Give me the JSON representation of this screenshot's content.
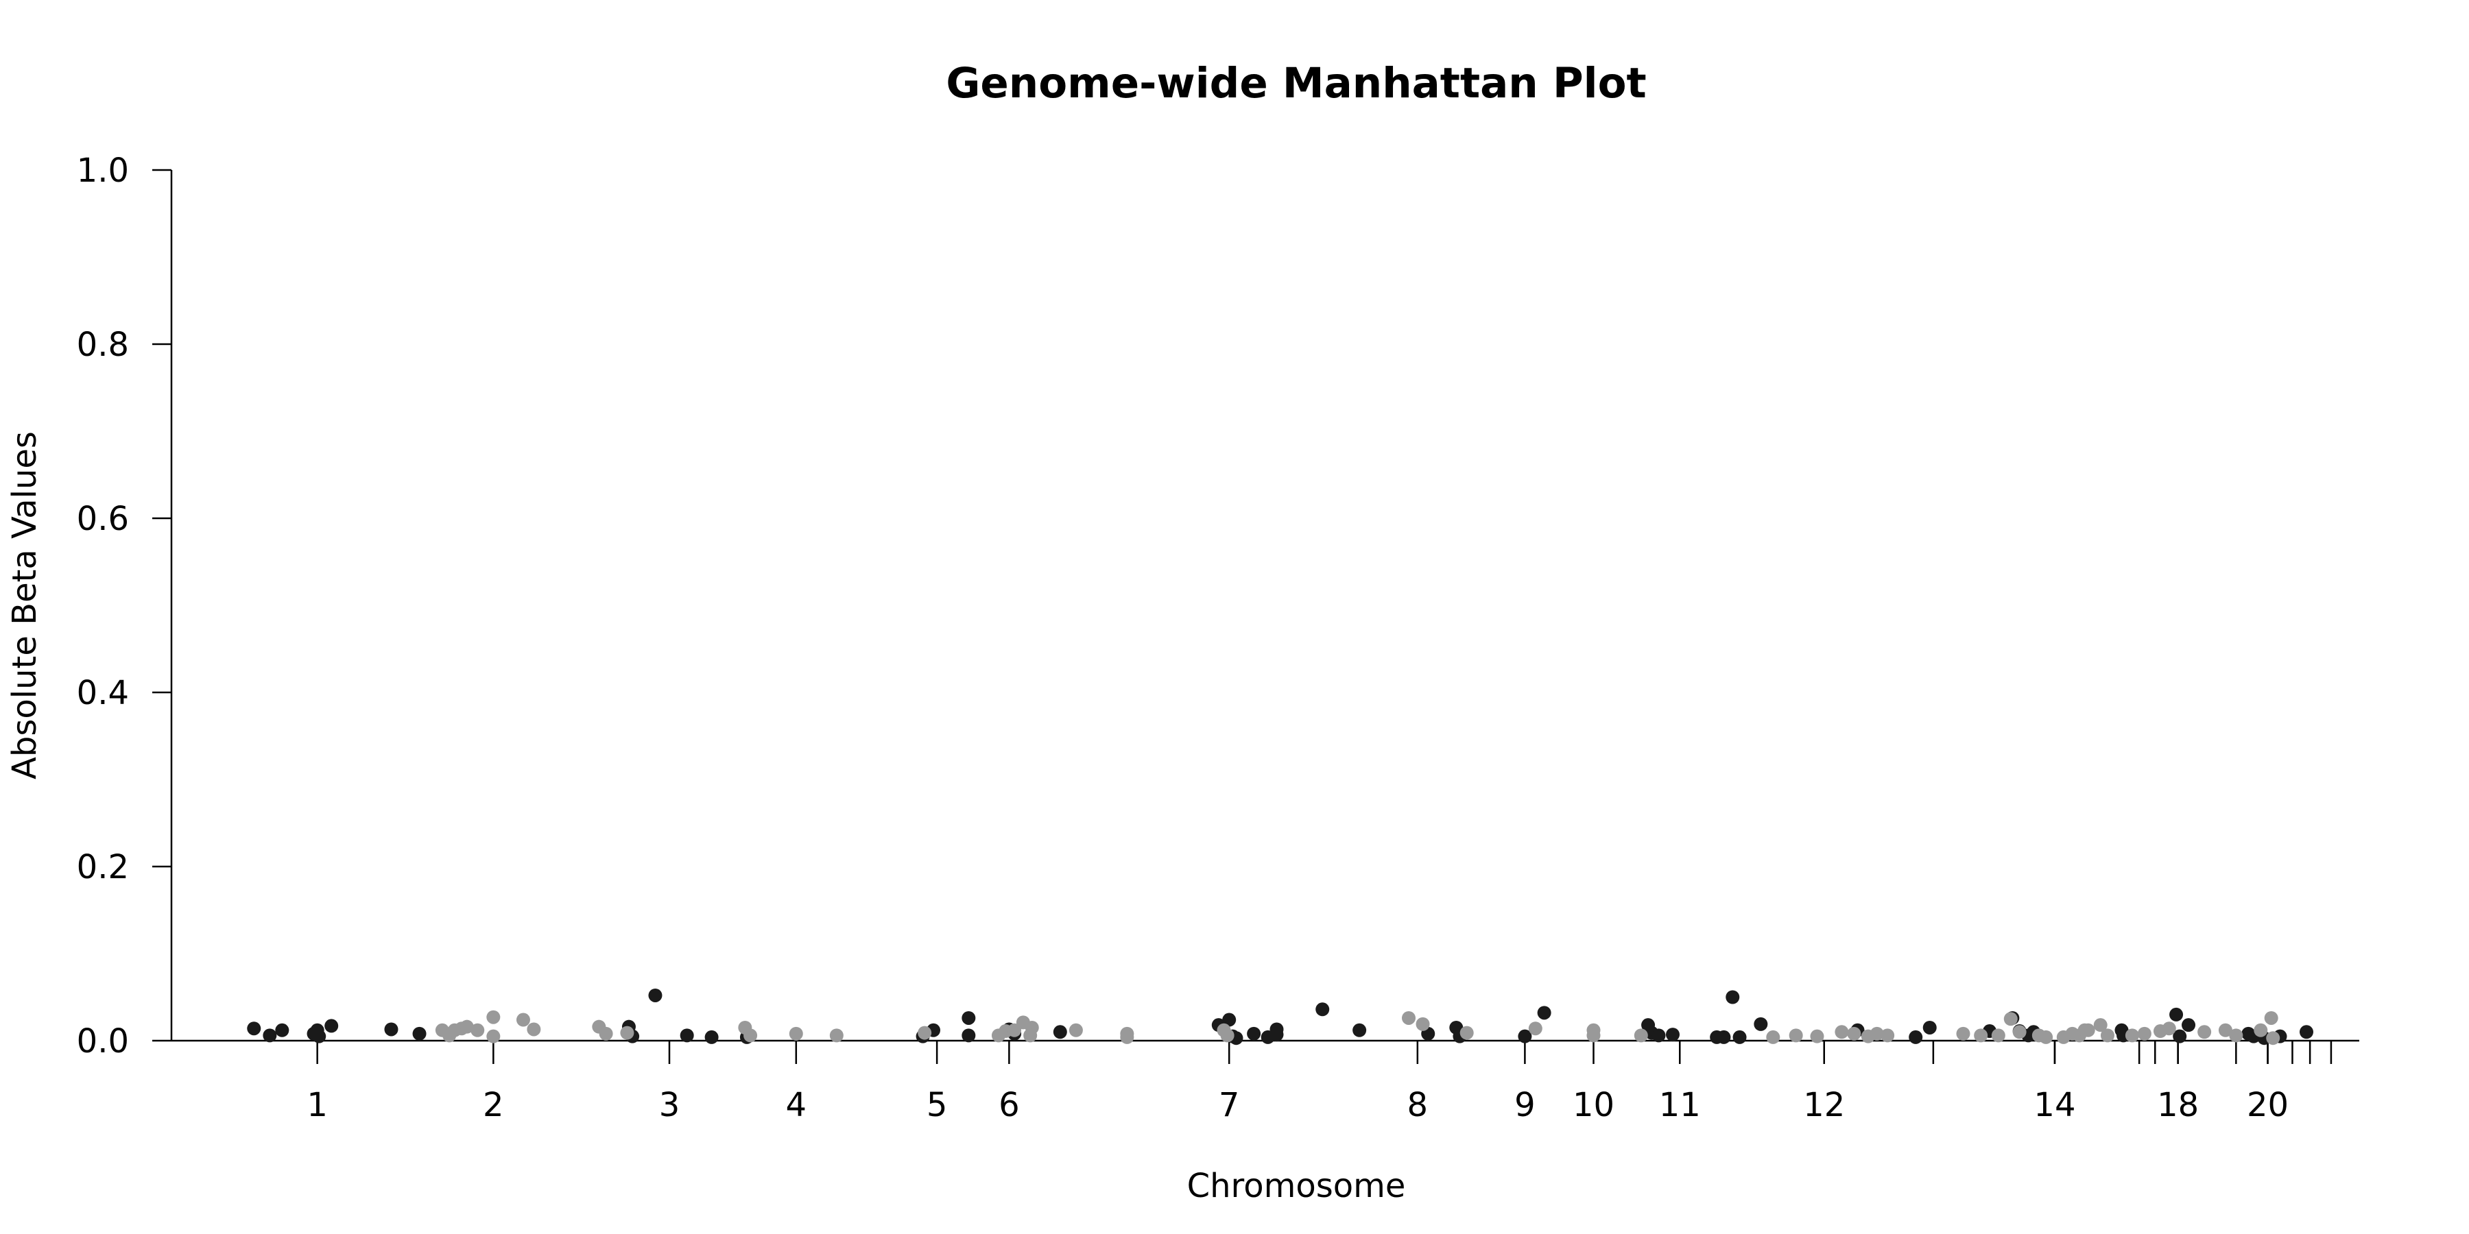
{
  "chart_data": {
    "type": "scatter",
    "title": "Genome-wide Manhattan Plot",
    "xlabel": "Chromosome",
    "ylabel": "Absolute Beta Values",
    "ylim": [
      0,
      1.0
    ],
    "yticks": [
      "0.0",
      "0.2",
      "0.4",
      "0.6",
      "0.8",
      "1.0"
    ],
    "grid": false,
    "legend": "none",
    "colors": {
      "dark": "#1a1a1a",
      "light": "#999999"
    },
    "chromosome_ticks": [
      {
        "label": "1",
        "pos": 1.0
      },
      {
        "label": "2",
        "pos": 2.0
      },
      {
        "label": "3",
        "pos": 3.0
      },
      {
        "label": "4",
        "pos": 3.72
      },
      {
        "label": "5",
        "pos": 4.52
      },
      {
        "label": "6",
        "pos": 4.93
      },
      {
        "label": "7",
        "pos": 6.18
      },
      {
        "label": "8",
        "pos": 7.25
      },
      {
        "label": "9",
        "pos": 7.86
      },
      {
        "label": "10",
        "pos": 8.25
      },
      {
        "label": "11",
        "pos": 8.74
      },
      {
        "label": "",
        "pos": 9.56
      },
      {
        "label": "12",
        "pos": 9.56
      },
      {
        "label": "",
        "pos": 10.87
      },
      {
        "label": "14",
        "pos": 10.87
      },
      {
        "label": "",
        "pos": 10.18
      },
      {
        "label": "",
        "pos": 11.35
      },
      {
        "label": "",
        "pos": 11.44
      },
      {
        "label": "",
        "pos": 11.57
      },
      {
        "label": "18",
        "pos": 11.57
      },
      {
        "label": "",
        "pos": 11.9
      },
      {
        "label": "",
        "pos": 12.08
      },
      {
        "label": "20",
        "pos": 12.08
      },
      {
        "label": "",
        "pos": 12.22
      },
      {
        "label": "",
        "pos": 12.32
      },
      {
        "label": "",
        "pos": 12.44
      }
    ],
    "xlim": [
      0.6,
      12.6
    ],
    "series": [
      {
        "color_key": "dark",
        "points": [
          [
            0.64,
            0.014
          ],
          [
            0.73,
            0.006
          ],
          [
            0.8,
            0.012
          ],
          [
            0.98,
            0.008
          ],
          [
            1.0,
            0.012
          ],
          [
            1.01,
            0.005
          ],
          [
            1.08,
            0.017
          ],
          [
            1.42,
            0.013
          ],
          [
            1.58,
            0.008
          ],
          [
            2.77,
            0.016
          ],
          [
            2.79,
            0.005
          ],
          [
            2.92,
            0.052
          ],
          [
            3.1,
            0.006
          ],
          [
            3.24,
            0.004
          ],
          [
            3.44,
            0.004
          ],
          [
            4.44,
            0.005
          ],
          [
            4.5,
            0.012
          ],
          [
            4.7,
            0.026
          ],
          [
            4.7,
            0.006
          ],
          [
            4.93,
            0.013
          ],
          [
            4.96,
            0.008
          ],
          [
            5.22,
            0.01
          ],
          [
            6.12,
            0.018
          ],
          [
            6.18,
            0.024
          ],
          [
            6.2,
            0.005
          ],
          [
            6.22,
            0.003
          ],
          [
            6.32,
            0.008
          ],
          [
            6.4,
            0.004
          ],
          [
            6.45,
            0.013
          ],
          [
            6.45,
            0.007
          ],
          [
            6.71,
            0.036
          ],
          [
            6.92,
            0.012
          ],
          [
            7.31,
            0.008
          ],
          [
            7.47,
            0.015
          ],
          [
            7.49,
            0.005
          ],
          [
            7.86,
            0.005
          ],
          [
            7.97,
            0.032
          ],
          [
            8.56,
            0.018
          ],
          [
            8.58,
            0.009
          ],
          [
            8.62,
            0.006
          ],
          [
            8.7,
            0.007
          ],
          [
            8.95,
            0.004
          ],
          [
            8.99,
            0.004
          ],
          [
            9.04,
            0.05
          ],
          [
            9.08,
            0.004
          ],
          [
            9.2,
            0.019
          ],
          [
            9.75,
            0.012
          ],
          [
            10.08,
            0.004
          ],
          [
            10.16,
            0.015
          ],
          [
            10.63,
            0.026
          ],
          [
            10.67,
            0.011
          ],
          [
            10.72,
            0.006
          ],
          [
            10.75,
            0.01
          ],
          [
            11.25,
            0.012
          ],
          [
            11.26,
            0.006
          ],
          [
            11.56,
            0.03
          ],
          [
            11.58,
            0.005
          ],
          [
            11.63,
            0.018
          ],
          [
            11.97,
            0.008
          ],
          [
            12.0,
            0.005
          ],
          [
            12.06,
            0.003
          ],
          [
            12.15,
            0.005
          ],
          [
            12.3,
            0.01
          ],
          [
            10.5,
            0.011
          ]
        ]
      },
      {
        "color_key": "light",
        "points": [
          [
            1.71,
            0.012
          ],
          [
            1.75,
            0.006
          ],
          [
            1.78,
            0.012
          ],
          [
            1.82,
            0.014
          ],
          [
            1.85,
            0.016
          ],
          [
            1.91,
            0.012
          ],
          [
            2.0,
            0.027
          ],
          [
            2.0,
            0.005
          ],
          [
            2.17,
            0.024
          ],
          [
            2.23,
            0.013
          ],
          [
            2.6,
            0.016
          ],
          [
            2.64,
            0.008
          ],
          [
            2.76,
            0.009
          ],
          [
            3.43,
            0.015
          ],
          [
            3.46,
            0.006
          ],
          [
            3.72,
            0.008
          ],
          [
            3.95,
            0.006
          ],
          [
            4.45,
            0.009
          ],
          [
            4.87,
            0.006
          ],
          [
            4.91,
            0.011
          ],
          [
            4.96,
            0.012
          ],
          [
            5.01,
            0.021
          ],
          [
            5.06,
            0.015
          ],
          [
            5.05,
            0.006
          ],
          [
            5.31,
            0.012
          ],
          [
            5.6,
            0.008
          ],
          [
            5.6,
            0.004
          ],
          [
            6.15,
            0.012
          ],
          [
            6.17,
            0.006
          ],
          [
            7.2,
            0.026
          ],
          [
            7.28,
            0.019
          ],
          [
            7.53,
            0.009
          ],
          [
            7.92,
            0.014
          ],
          [
            8.25,
            0.012
          ],
          [
            8.25,
            0.006
          ],
          [
            8.52,
            0.006
          ],
          [
            9.27,
            0.004
          ],
          [
            9.4,
            0.006
          ],
          [
            9.52,
            0.005
          ],
          [
            9.66,
            0.01
          ],
          [
            9.73,
            0.008
          ],
          [
            9.81,
            0.005
          ],
          [
            9.86,
            0.008
          ],
          [
            9.92,
            0.006
          ],
          [
            10.35,
            0.008
          ],
          [
            10.45,
            0.006
          ],
          [
            10.55,
            0.006
          ],
          [
            10.62,
            0.025
          ],
          [
            10.67,
            0.01
          ],
          [
            10.78,
            0.006
          ],
          [
            10.82,
            0.004
          ],
          [
            10.92,
            0.004
          ],
          [
            10.97,
            0.008
          ],
          [
            11.01,
            0.006
          ],
          [
            11.06,
            0.012
          ],
          [
            11.13,
            0.018
          ],
          [
            11.17,
            0.006
          ],
          [
            11.31,
            0.006
          ],
          [
            11.38,
            0.008
          ],
          [
            11.47,
            0.011
          ],
          [
            11.52,
            0.014
          ],
          [
            11.72,
            0.01
          ],
          [
            11.84,
            0.012
          ],
          [
            11.9,
            0.006
          ],
          [
            12.04,
            0.012
          ],
          [
            12.1,
            0.026
          ],
          [
            12.11,
            0.003
          ],
          [
            11.04,
            0.012
          ]
        ]
      }
    ]
  }
}
